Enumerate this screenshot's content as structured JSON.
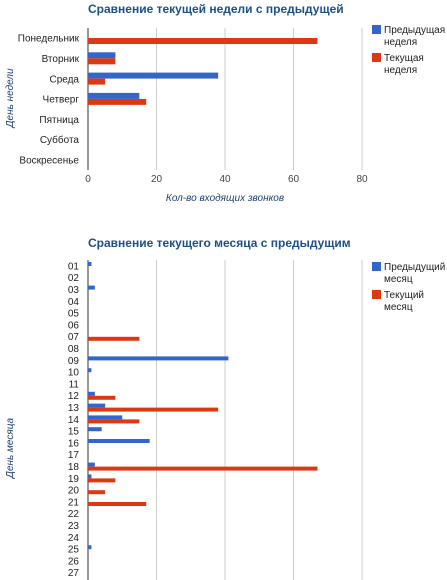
{
  "chart_data": [
    {
      "type": "bar",
      "orientation": "horizontal",
      "title": "Сравнение текущей недели с предыдущей",
      "xlabel": "Кол-во входящих звонков",
      "ylabel": "День недели",
      "categories": [
        "Понедельник",
        "Вторник",
        "Среда",
        "Четверг",
        "Пятница",
        "Суббота",
        "Воскресенье"
      ],
      "series": [
        {
          "name": "Предыдущая неделя",
          "color": "#3366cc",
          "values": [
            0,
            8,
            38,
            15,
            0,
            0,
            0
          ]
        },
        {
          "name": "Текущая неделя",
          "color": "#dc3912",
          "values": [
            67,
            8,
            5,
            17,
            0,
            0,
            0
          ]
        }
      ],
      "xlim": [
        0,
        80
      ],
      "xticks": [
        "0",
        "20",
        "40",
        "60",
        "80"
      ],
      "grid": true,
      "legend": "right"
    },
    {
      "type": "bar",
      "orientation": "horizontal",
      "title": "Сравнение текущего месяца с предыдущим",
      "xlabel": "",
      "ylabel": "День месяца",
      "categories": [
        "01",
        "02",
        "03",
        "04",
        "05",
        "06",
        "07",
        "08",
        "09",
        "10",
        "11",
        "12",
        "13",
        "14",
        "15",
        "16",
        "17",
        "18",
        "19",
        "20",
        "21",
        "22",
        "23",
        "24",
        "25",
        "26",
        "27"
      ],
      "series": [
        {
          "name": "Предыдущий месяц",
          "color": "#3366cc",
          "values": [
            1,
            0,
            2,
            0,
            0,
            0,
            0,
            0,
            41,
            1,
            0,
            2,
            5,
            10,
            4,
            18,
            0,
            2,
            1,
            0,
            0,
            0,
            0,
            0,
            1,
            0,
            0
          ]
        },
        {
          "name": "Текущий месяц",
          "color": "#dc3912",
          "values": [
            0,
            0,
            0,
            0,
            0,
            0,
            15,
            0,
            0,
            0,
            0,
            8,
            38,
            15,
            0,
            0,
            0,
            67,
            8,
            5,
            17,
            0,
            0,
            0,
            0,
            0,
            0
          ]
        }
      ],
      "xlim": [
        0,
        80
      ],
      "grid": true,
      "legend": "right"
    }
  ]
}
